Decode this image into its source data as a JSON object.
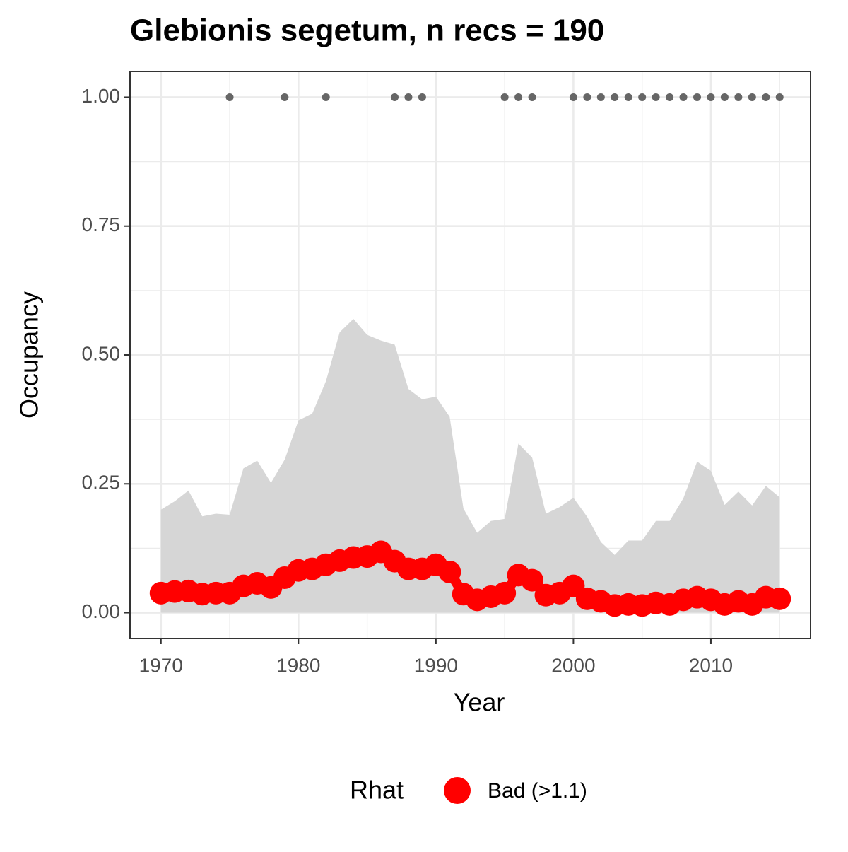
{
  "chart_data": {
    "type": "line",
    "title": "Glebionis segetum, n recs = 190",
    "x_label": "Year",
    "y_label": "Occupancy",
    "legend_title": "Rhat",
    "x": [
      1970,
      1971,
      1972,
      1973,
      1974,
      1975,
      1976,
      1977,
      1978,
      1979,
      1980,
      1981,
      1982,
      1983,
      1984,
      1985,
      1986,
      1987,
      1988,
      1989,
      1990,
      1991,
      1992,
      1993,
      1994,
      1995,
      1996,
      1997,
      1998,
      1999,
      2000,
      2001,
      2002,
      2003,
      2004,
      2005,
      2006,
      2007,
      2008,
      2009,
      2010,
      2011,
      2012,
      2013,
      2014,
      2015
    ],
    "series": [
      {
        "name": "Bad (>1.1)",
        "color": "#ff0000",
        "values": [
          0.038,
          0.041,
          0.042,
          0.036,
          0.038,
          0.038,
          0.052,
          0.057,
          0.049,
          0.068,
          0.082,
          0.085,
          0.093,
          0.101,
          0.107,
          0.109,
          0.118,
          0.1,
          0.085,
          0.085,
          0.093,
          0.079,
          0.036,
          0.025,
          0.031,
          0.038,
          0.073,
          0.063,
          0.034,
          0.038,
          0.052,
          0.027,
          0.022,
          0.014,
          0.016,
          0.014,
          0.019,
          0.016,
          0.025,
          0.03,
          0.025,
          0.016,
          0.022,
          0.016,
          0.03,
          0.027
        ]
      }
    ],
    "band": {
      "color": "#d6d6d6",
      "upper": [
        0.2,
        0.216,
        0.237,
        0.187,
        0.192,
        0.19,
        0.28,
        0.295,
        0.252,
        0.297,
        0.373,
        0.386,
        0.449,
        0.544,
        0.57,
        0.539,
        0.528,
        0.52,
        0.434,
        0.414,
        0.419,
        0.38,
        0.202,
        0.155,
        0.178,
        0.182,
        0.328,
        0.301,
        0.192,
        0.205,
        0.223,
        0.186,
        0.137,
        0.112,
        0.14,
        0.14,
        0.178,
        0.178,
        0.222,
        0.293,
        0.275,
        0.209,
        0.235,
        0.208,
        0.246,
        0.224
      ],
      "lower": [
        0,
        0,
        0,
        0,
        0,
        0,
        0,
        0,
        0,
        0,
        0,
        0,
        0,
        0,
        0,
        0,
        0,
        0,
        0,
        0,
        0,
        0,
        0,
        0,
        0,
        0,
        0,
        0,
        0,
        0,
        0,
        0,
        0,
        0,
        0,
        0,
        0,
        0,
        0,
        0,
        0,
        0,
        0,
        0,
        0,
        0
      ]
    },
    "records": {
      "color": "#666666",
      "x": [
        1975,
        1979,
        1982,
        1987,
        1988,
        1989,
        1995,
        1996,
        1997,
        2000,
        2001,
        2002,
        2003,
        2004,
        2005,
        2006,
        2007,
        2008,
        2009,
        2010,
        2011,
        2012,
        2013,
        2014,
        2015
      ],
      "values": [
        1,
        1,
        1,
        1,
        1,
        1,
        1,
        1,
        1,
        1,
        1,
        1,
        1,
        1,
        1,
        1,
        1,
        1,
        1,
        1,
        1,
        1,
        1,
        1,
        1
      ]
    },
    "xlim": [
      1967.75,
      2017.25
    ],
    "ylim": [
      -0.05,
      1.05
    ],
    "xticks": [
      1970,
      1980,
      1990,
      2000,
      2010
    ],
    "yticks": [
      {
        "value": 0,
        "label": "0.00"
      },
      {
        "value": 0.25,
        "label": "0.25"
      },
      {
        "value": 0.5,
        "label": "0.50"
      },
      {
        "value": 0.75,
        "label": "0.75"
      },
      {
        "value": 1,
        "label": "1.00"
      }
    ],
    "minor_xticks": [
      1975,
      1985,
      1995,
      2005,
      2015
    ],
    "minor_yticks": [
      0.125,
      0.375,
      0.625,
      0.875
    ],
    "grid": true
  }
}
